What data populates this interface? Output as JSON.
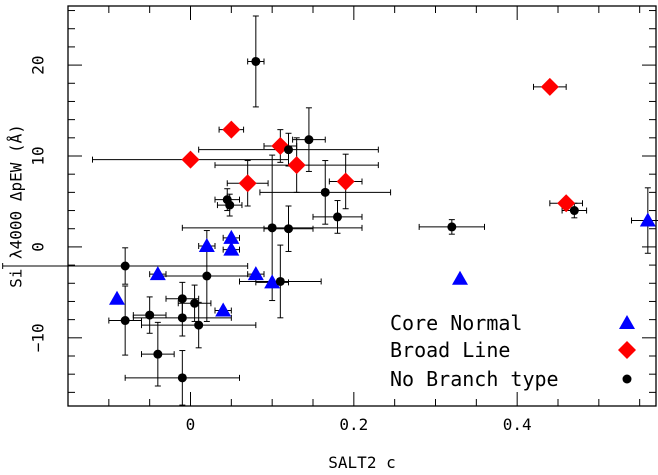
{
  "chart_data": {
    "type": "scatter",
    "xlabel": "SALT2 c",
    "ylabel": "Si λ4000 ΔpEW (Å)",
    "xlim": [
      -0.15,
      0.57
    ],
    "ylim": [
      -17.5,
      26.5
    ],
    "x_ticks": [
      0,
      0.2,
      0.4
    ],
    "x_tick_labels": [
      "0",
      "0.2",
      "0.4"
    ],
    "y_ticks": [
      -10,
      0,
      10,
      20
    ],
    "y_tick_labels": [
      "−10",
      "0",
      "10",
      "20"
    ],
    "grid": false,
    "legend_position": "bottom-right",
    "series": [
      {
        "name": "Core Normal",
        "marker": "triangle",
        "color": "#0000ff",
        "points": [
          {
            "x": -0.09,
            "y": -5.7,
            "xerr": 0.0,
            "yerr": 0.0
          },
          {
            "x": -0.04,
            "y": -3.0,
            "xerr": 0.01,
            "yerr": 0.0
          },
          {
            "x": 0.02,
            "y": 0.1,
            "xerr": 0.01,
            "yerr": 0.0
          },
          {
            "x": 0.04,
            "y": -7.0,
            "xerr": 0.01,
            "yerr": 0.0
          },
          {
            "x": 0.05,
            "y": 1.0,
            "xerr": 0.01,
            "yerr": 0.0
          },
          {
            "x": 0.05,
            "y": -0.3,
            "xerr": 0.01,
            "yerr": 0.0
          },
          {
            "x": 0.08,
            "y": -3.0,
            "xerr": 0.01,
            "yerr": 0.0
          },
          {
            "x": 0.1,
            "y": -3.9,
            "xerr": 0.02,
            "yerr": 0.0
          },
          {
            "x": 0.33,
            "y": -3.5,
            "xerr": 0.0,
            "yerr": 0.0
          },
          {
            "x": 0.56,
            "y": 2.9,
            "xerr": 0.02,
            "yerr": 3.6
          }
        ]
      },
      {
        "name": "Broad Line",
        "marker": "diamond",
        "color": "#ff0000",
        "points": [
          {
            "x": 0.0,
            "y": 9.6,
            "xerr": 0.12,
            "yerr": 0.0
          },
          {
            "x": 0.05,
            "y": 12.9,
            "xerr": 0.015,
            "yerr": 0.0
          },
          {
            "x": 0.07,
            "y": 7.0,
            "xerr": 0.025,
            "yerr": 2.5
          },
          {
            "x": 0.11,
            "y": 11.1,
            "xerr": 0.02,
            "yerr": 1.8
          },
          {
            "x": 0.13,
            "y": 9.0,
            "xerr": 0.1,
            "yerr": 3.0
          },
          {
            "x": 0.19,
            "y": 7.2,
            "xerr": 0.02,
            "yerr": 3.0
          },
          {
            "x": 0.44,
            "y": 17.6,
            "xerr": 0.02,
            "yerr": 0.0
          },
          {
            "x": 0.46,
            "y": 4.8,
            "xerr": 0.02,
            "yerr": 0.0
          }
        ]
      },
      {
        "name": "No Branch type",
        "marker": "circle",
        "color": "#000000",
        "points": [
          {
            "x": -0.08,
            "y": -2.1,
            "xerr": 0.15,
            "yerr": 2.0
          },
          {
            "x": -0.08,
            "y": -8.1,
            "xerr": 0.02,
            "yerr": 3.8
          },
          {
            "x": -0.05,
            "y": -7.5,
            "xerr": 0.02,
            "yerr": 2.0
          },
          {
            "x": -0.04,
            "y": -11.8,
            "xerr": 0.02,
            "yerr": 3.5
          },
          {
            "x": -0.01,
            "y": -14.4,
            "xerr": 0.07,
            "yerr": 3.0
          },
          {
            "x": -0.01,
            "y": -5.7,
            "xerr": 0.02,
            "yerr": 1.8
          },
          {
            "x": -0.01,
            "y": -7.8,
            "xerr": 0.06,
            "yerr": 2.0
          },
          {
            "x": 0.005,
            "y": -6.2,
            "xerr": 0.02,
            "yerr": 2.0
          },
          {
            "x": 0.01,
            "y": -8.6,
            "xerr": 0.07,
            "yerr": 2.5
          },
          {
            "x": 0.02,
            "y": -3.2,
            "xerr": 0.06,
            "yerr": 5.0
          },
          {
            "x": 0.045,
            "y": 5.2,
            "xerr": 0.015,
            "yerr": 1.2
          },
          {
            "x": 0.048,
            "y": 4.6,
            "xerr": 0.015,
            "yerr": 1.2
          },
          {
            "x": 0.08,
            "y": 20.4,
            "xerr": 0.01,
            "yerr": 5.0
          },
          {
            "x": 0.1,
            "y": 2.1,
            "xerr": 0.11,
            "yerr": 8.0
          },
          {
            "x": 0.11,
            "y": -3.8,
            "xerr": 0.05,
            "yerr": 4.0
          },
          {
            "x": 0.12,
            "y": 10.7,
            "xerr": 0.11,
            "yerr": 1.8
          },
          {
            "x": 0.12,
            "y": 2.0,
            "xerr": 0.03,
            "yerr": 2.5
          },
          {
            "x": 0.145,
            "y": 11.8,
            "xerr": 0.02,
            "yerr": 3.5
          },
          {
            "x": 0.165,
            "y": 6.0,
            "xerr": 0.08,
            "yerr": 3.5
          },
          {
            "x": 0.18,
            "y": 3.3,
            "xerr": 0.03,
            "yerr": 1.8
          },
          {
            "x": 0.32,
            "y": 2.2,
            "xerr": 0.04,
            "yerr": 0.8
          },
          {
            "x": 0.47,
            "y": 4.0,
            "xerr": 0.015,
            "yerr": 0.8
          }
        ]
      }
    ]
  }
}
